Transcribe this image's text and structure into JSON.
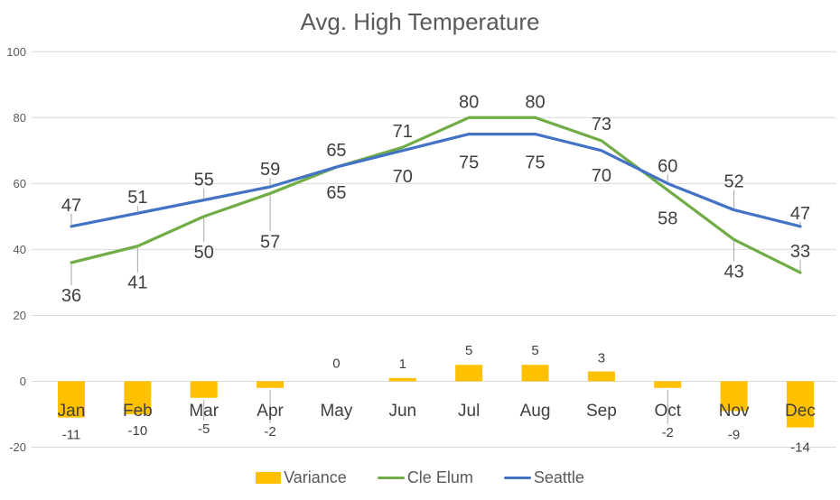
{
  "chart_data": {
    "type": "combo",
    "title": "Avg. High Temperature",
    "categories": [
      "Jan",
      "Feb",
      "Mar",
      "Apr",
      "May",
      "Jun",
      "Jul",
      "Aug",
      "Sep",
      "Oct",
      "Nov",
      "Dec"
    ],
    "series": [
      {
        "name": "Variance",
        "type": "bar",
        "color": "#FFC000",
        "values": [
          -11,
          -10,
          -5,
          -2,
          0,
          1,
          5,
          5,
          3,
          -2,
          -9,
          -14
        ],
        "label_dy": [
          19,
          18,
          34,
          48,
          20,
          16,
          16,
          16,
          15,
          49,
          26,
          22
        ],
        "label_leader": [
          false,
          false,
          true,
          true,
          false,
          false,
          false,
          false,
          false,
          true,
          false,
          false
        ]
      },
      {
        "name": "Cle Elum",
        "type": "line",
        "color": "#70AD47",
        "values": [
          36,
          41,
          50,
          57,
          65,
          71,
          80,
          80,
          73,
          58,
          43,
          33
        ],
        "label_dy": [
          36,
          40,
          39,
          53,
          28,
          -18,
          -18,
          -18,
          -19,
          31,
          35,
          -24
        ],
        "label_leader": [
          true,
          true,
          true,
          true,
          false,
          false,
          false,
          false,
          false,
          false,
          true,
          true
        ]
      },
      {
        "name": "Seattle",
        "type": "line",
        "color": "#4472C4",
        "values": [
          47,
          51,
          55,
          59,
          65,
          70,
          75,
          75,
          70,
          60,
          52,
          47
        ],
        "label_dy": [
          -24,
          -18,
          -23,
          -20,
          -19,
          28,
          31,
          31,
          27,
          -20,
          -32,
          -15
        ],
        "label_leader": [
          true,
          true,
          true,
          true,
          false,
          false,
          false,
          false,
          false,
          true,
          true,
          true
        ]
      }
    ],
    "y_axis": {
      "ticks": [
        100,
        80,
        60,
        40,
        20,
        0,
        -20
      ],
      "min": -20,
      "max": 100
    },
    "grid": true,
    "legend_position": "bottom",
    "colors": {
      "title_text": "#595959",
      "axis_text": "#595959",
      "data_label_text": "#404040",
      "gridline": "#D9D9D9",
      "leader_line": "#A6A6A6",
      "background": "#FFFFFF"
    }
  }
}
